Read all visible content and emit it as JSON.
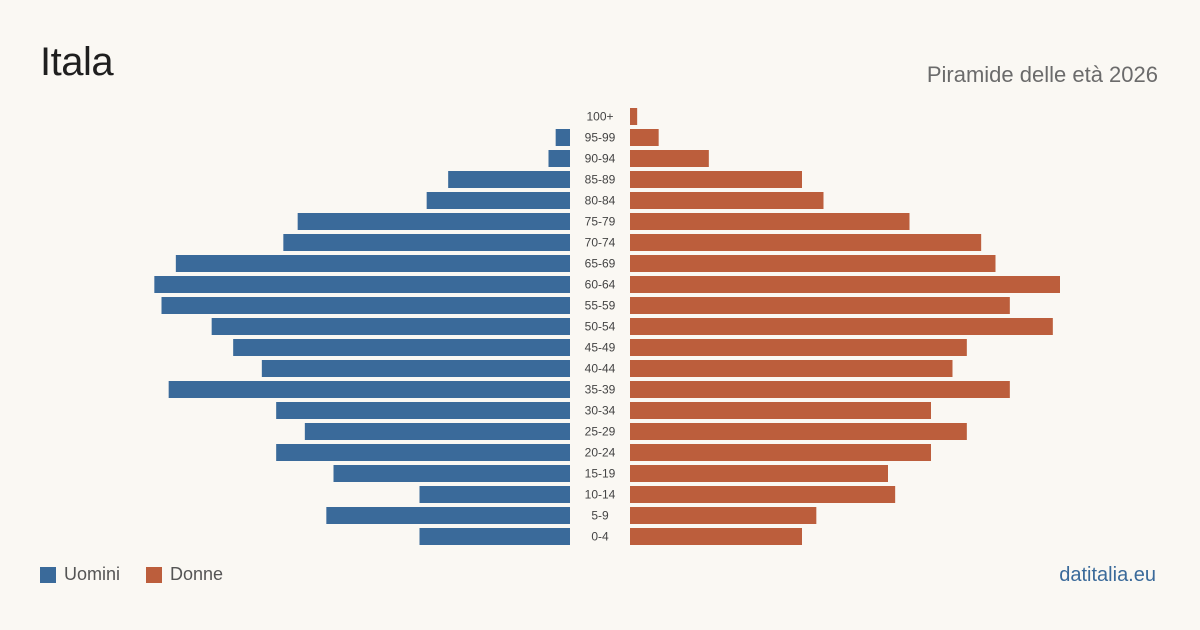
{
  "header": {
    "title": "Itala",
    "subtitle": "Piramide delle età 2026"
  },
  "legend": {
    "men_label": "Uomini",
    "women_label": "Donne"
  },
  "brand": "datitalia.eu",
  "colors": {
    "men": "#3a6a9a",
    "women": "#bc5e3c",
    "background": "#faf8f3",
    "label": "#444444"
  },
  "chart_data": {
    "type": "bar",
    "orientation": "horizontal-pyramid",
    "title": "Piramide delle età 2026",
    "categories": [
      "100+",
      "95-99",
      "90-94",
      "85-89",
      "80-84",
      "75-79",
      "70-74",
      "65-69",
      "60-64",
      "55-59",
      "50-54",
      "45-49",
      "40-44",
      "35-39",
      "30-34",
      "25-29",
      "20-24",
      "15-19",
      "10-14",
      "5-9",
      "0-4"
    ],
    "series": [
      {
        "name": "Uomini",
        "values": [
          0,
          2,
          3,
          17,
          20,
          38,
          40,
          55,
          58,
          57,
          50,
          47,
          43,
          56,
          41,
          37,
          41,
          33,
          21,
          34,
          21
        ]
      },
      {
        "name": "Donne",
        "values": [
          1,
          4,
          11,
          24,
          27,
          39,
          49,
          51,
          60,
          53,
          59,
          47,
          45,
          53,
          42,
          47,
          42,
          36,
          37,
          26,
          24
        ]
      }
    ],
    "xlim": [
      0,
      60
    ],
    "grid": false,
    "legend_position": "bottom-left"
  }
}
